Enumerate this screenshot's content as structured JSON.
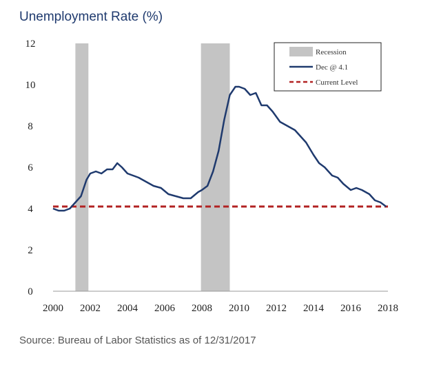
{
  "title": "Unemployment Rate (%)",
  "source": "Source: Bureau of Labor Statistics as of 12/31/2017",
  "colors": {
    "series": "#1f3a6e",
    "recession": "#c4c4c4",
    "current": "#b22222"
  },
  "chart_data": {
    "type": "line",
    "title": "Unemployment Rate (%)",
    "xlim": [
      2000,
      2018
    ],
    "ylim": [
      0,
      12
    ],
    "x_ticks": [
      2000,
      2002,
      2004,
      2006,
      2008,
      2010,
      2012,
      2014,
      2016,
      2018
    ],
    "y_ticks": [
      0,
      2,
      4,
      6,
      8,
      10,
      12
    ],
    "grid": false,
    "legend_position": "top-right",
    "recessions": [
      {
        "label": "Recession",
        "start": 2001.2,
        "end": 2001.9
      },
      {
        "label": "Recession",
        "start": 2007.95,
        "end": 2009.5
      }
    ],
    "reference_line": {
      "label": "Current Level",
      "value": 4.1
    },
    "series": [
      {
        "name": "Dec @ 4.1",
        "x": [
          2000.0,
          2000.3,
          2000.6,
          2000.9,
          2001.2,
          2001.5,
          2001.8,
          2002.0,
          2002.3,
          2002.6,
          2002.9,
          2003.2,
          2003.45,
          2003.7,
          2004.0,
          2004.3,
          2004.6,
          2005.0,
          2005.4,
          2005.8,
          2006.2,
          2006.6,
          2007.0,
          2007.4,
          2007.8,
          2008.0,
          2008.3,
          2008.6,
          2008.9,
          2009.2,
          2009.5,
          2009.8,
          2010.0,
          2010.3,
          2010.6,
          2010.9,
          2011.2,
          2011.5,
          2011.8,
          2012.2,
          2012.6,
          2013.0,
          2013.3,
          2013.6,
          2014.0,
          2014.3,
          2014.6,
          2015.0,
          2015.3,
          2015.6,
          2016.0,
          2016.3,
          2016.6,
          2017.0,
          2017.3,
          2017.6,
          2017.9
        ],
        "values": [
          4.0,
          3.9,
          3.9,
          4.0,
          4.3,
          4.6,
          5.4,
          5.7,
          5.8,
          5.7,
          5.9,
          5.9,
          6.2,
          6.0,
          5.7,
          5.6,
          5.5,
          5.3,
          5.1,
          5.0,
          4.7,
          4.6,
          4.5,
          4.5,
          4.8,
          4.9,
          5.1,
          5.8,
          6.8,
          8.3,
          9.5,
          9.9,
          9.9,
          9.8,
          9.5,
          9.6,
          9.0,
          9.0,
          8.7,
          8.2,
          8.0,
          7.8,
          7.5,
          7.2,
          6.6,
          6.2,
          6.0,
          5.6,
          5.5,
          5.2,
          4.9,
          5.0,
          4.9,
          4.7,
          4.4,
          4.3,
          4.1
        ]
      }
    ]
  }
}
